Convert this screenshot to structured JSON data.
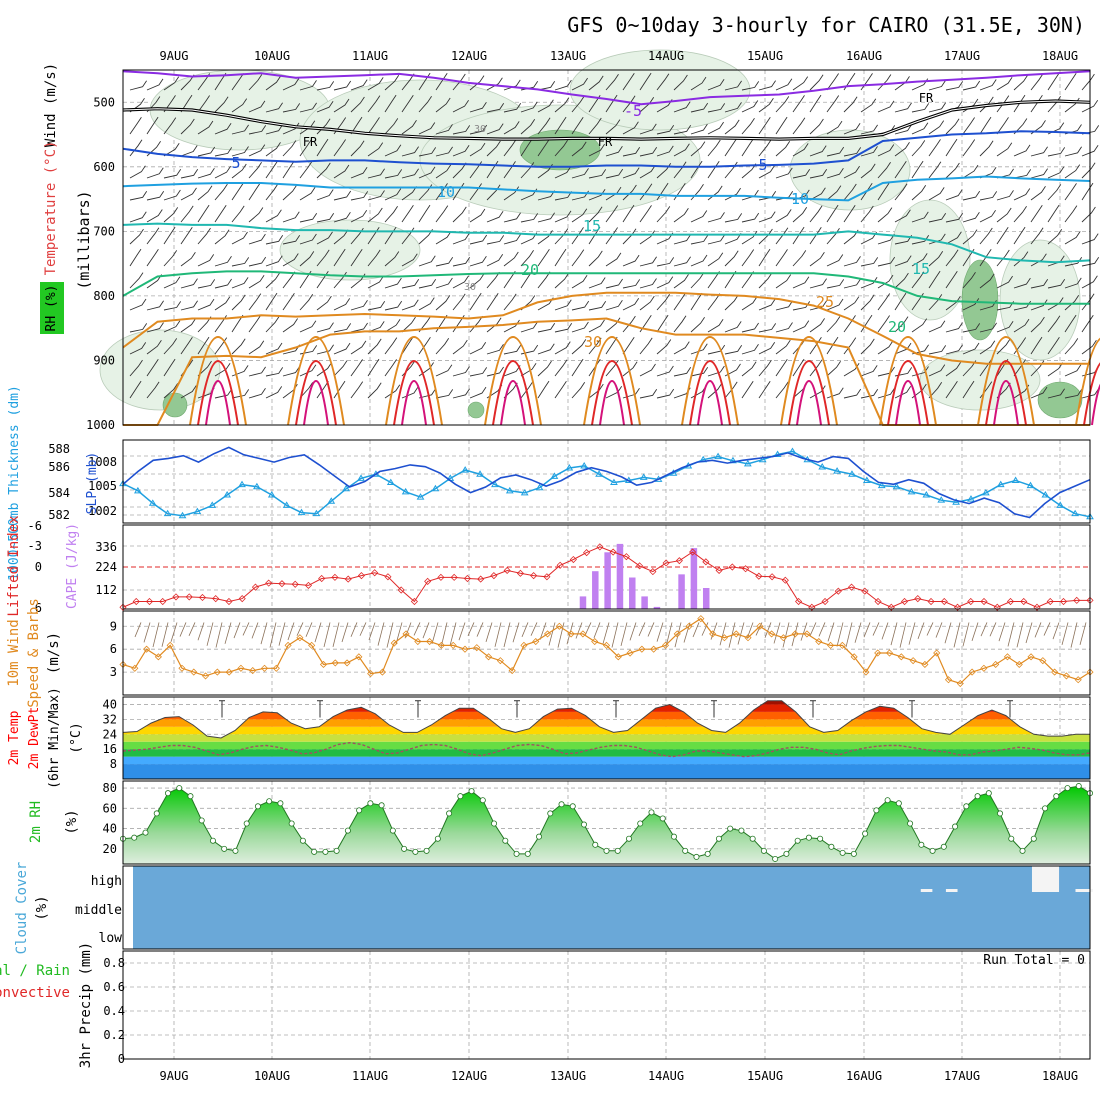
{
  "title": "GFS 0~10day 3-hourly for CAIRO (31.5E, 30N)",
  "dates": [
    "9AUG",
    "10AUG",
    "11AUG",
    "12AUG",
    "13AUG",
    "14AUG",
    "15AUG",
    "16AUG",
    "17AUG",
    "18AUG"
  ],
  "colors": {
    "purple": "#8a2be2",
    "black": "#000000",
    "blue": "#1e50d0",
    "lightblue": "#1fa0e0",
    "teal": "#20b8b0",
    "green": "#20b878",
    "orange": "#e08a20",
    "red": "#e02828",
    "cape": "#c080f0",
    "cloud": "#6aa8d8",
    "rh_green": "#22c822"
  },
  "chart_data": [
    {
      "panel": "upper-air",
      "type": "contour",
      "ylabel": "(millibars)",
      "legend_labels": [
        "Wind (m/s)",
        "Temperature (°C)",
        "RH (%)"
      ],
      "y_ticks": [
        "500",
        "600",
        "700",
        "800",
        "900",
        "1000"
      ],
      "ylim": [
        1000,
        450
      ],
      "freezing_label": "FR",
      "isotherm_labels": [
        "-5",
        "5",
        "5",
        "10",
        "10",
        "15",
        "15",
        "20",
        "20",
        "25",
        "30"
      ],
      "rh_labels": [
        "30",
        "30"
      ],
      "isotherms": [
        {
          "label": "-5",
          "color": "purple",
          "p": [
            452,
            455,
            460,
            458,
            455,
            462,
            460,
            458,
            456,
            462,
            470,
            475,
            480,
            488,
            495,
            503,
            498,
            492,
            490,
            488,
            482,
            475,
            472,
            468,
            465,
            462,
            458,
            455,
            452
          ]
        },
        {
          "label": "FR",
          "color": "black",
          "p": [
            512,
            510,
            512,
            520,
            530,
            538,
            542,
            548,
            552,
            555,
            556,
            557,
            557,
            556,
            556,
            557,
            556,
            555,
            556,
            557,
            556,
            556,
            550,
            530,
            512,
            505,
            500,
            498,
            500
          ]
        },
        {
          "label": "5",
          "color": "blue",
          "p": [
            572,
            580,
            585,
            588,
            590,
            592,
            590,
            590,
            593,
            595,
            596,
            598,
            600,
            600,
            598,
            598,
            600,
            600,
            598,
            597,
            595,
            590,
            560,
            555,
            550,
            548,
            545,
            546,
            548
          ]
        },
        {
          "label": "10",
          "color": "lightblue",
          "p": [
            630,
            628,
            626,
            625,
            625,
            628,
            632,
            632,
            632,
            632,
            632,
            635,
            638,
            640,
            642,
            642,
            645,
            645,
            645,
            648,
            650,
            652,
            625,
            620,
            618,
            615,
            618,
            620,
            622
          ]
        },
        {
          "label": "15",
          "color": "teal",
          "p": [
            690,
            688,
            690,
            690,
            695,
            698,
            698,
            700,
            700,
            700,
            702,
            702,
            705,
            705,
            705,
            705,
            705,
            705,
            705,
            705,
            705,
            700,
            705,
            710,
            720,
            740,
            745,
            748,
            745
          ]
        },
        {
          "label": "20",
          "color": "green",
          "p": [
            800,
            770,
            765,
            762,
            762,
            765,
            768,
            770,
            770,
            768,
            766,
            765,
            765,
            765,
            765,
            765,
            765,
            765,
            765,
            765,
            765,
            770,
            780,
            800,
            808,
            810,
            812,
            812,
            812
          ]
        },
        {
          "label": "25",
          "color": "orange",
          "p": [
            880,
            840,
            835,
            835,
            830,
            832,
            830,
            828,
            830,
            832,
            835,
            830,
            810,
            800,
            795,
            795,
            795,
            798,
            800,
            805,
            815,
            835,
            862,
            890,
            900,
            905,
            905,
            905,
            905
          ]
        },
        {
          "label": "30",
          "color": "orange",
          "p": [
            1000,
            1000,
            895,
            893,
            895,
            880,
            860,
            855,
            855,
            850,
            848,
            845,
            840,
            838,
            835,
            850,
            860,
            860,
            860,
            865,
            870,
            880,
            1000,
            1000,
            1000,
            1000,
            1000,
            1000,
            1000
          ]
        }
      ]
    },
    {
      "panel": "thickness-slp",
      "type": "line",
      "left_ylabel": "1000~500mb Thickness (dm)",
      "right_ylabel": "SLP (mb)",
      "left_ticks": [
        "588",
        "586",
        "584",
        "582"
      ],
      "right_ticks": [
        "1008",
        "1005",
        "1002"
      ],
      "series": [
        {
          "name": "Thickness",
          "color": "lightblue",
          "ylim": [
            581.5,
            589.5
          ],
          "values": [
            585.3,
            584.6,
            583.4,
            582.4,
            582.2,
            582.6,
            583.2,
            584.2,
            585.2,
            585.0,
            584.2,
            583.2,
            582.5,
            582.4,
            583.6,
            584.8,
            585.8,
            586.2,
            585.4,
            584.5,
            584.0,
            584.8,
            585.8,
            586.6,
            586.2,
            585.2,
            584.6,
            584.4,
            584.9,
            586.0,
            586.8,
            587.0,
            586.2,
            585.4,
            585.6,
            585.9,
            585.7,
            586.3,
            587.0,
            587.6,
            587.9,
            587.5,
            587.2,
            587.6,
            588.1,
            588.4,
            587.6,
            586.9,
            586.5,
            586.2,
            585.6,
            585.1,
            585.0,
            584.5,
            584.2,
            583.7,
            583.5,
            583.8,
            584.4,
            585.2,
            585.6,
            585.1,
            584.2,
            583.2,
            582.4,
            582.1
          ]
        },
        {
          "name": "SLP",
          "color": "blue",
          "ylim": [
            1001,
            1010
          ],
          "values": [
            1005.2,
            1006.6,
            1007.8,
            1008.0,
            1008.3,
            1007.6,
            1008.5,
            1009.2,
            1008.4,
            1008.0,
            1007.6,
            1008.1,
            1008.4,
            1007.3,
            1006.1,
            1004.9,
            1005.5,
            1006.6,
            1006.9,
            1007.3,
            1007.1,
            1006.4,
            1005.2,
            1004.3,
            1004.9,
            1005.9,
            1006.2,
            1005.7,
            1005.0,
            1005.6,
            1006.5,
            1007.0,
            1006.6,
            1006.0,
            1005.1,
            1005.4,
            1006.2,
            1007.0,
            1007.6,
            1007.8,
            1007.5,
            1007.8,
            1008.0,
            1008.2,
            1008.6,
            1008.0,
            1007.6,
            1008.2,
            1008.0,
            1006.6,
            1005.4,
            1005.2,
            1005.7,
            1005.3,
            1004.2,
            1003.5,
            1003.1,
            1003.7,
            1003.2,
            1002.0,
            1001.6,
            1003.1,
            1004.3,
            1005.0,
            1005.7
          ]
        }
      ]
    },
    {
      "panel": "lifted-index-cape",
      "type": "bar+line",
      "left_ylabel": "Lifted Index",
      "right_ylabel": "CAPE (J/kg)",
      "left_ticks": [
        "6",
        "0",
        "-3",
        "-6"
      ],
      "right_ticks": [
        "336",
        "224",
        "112"
      ],
      "lifted_index": [
        7,
        6,
        6,
        6,
        5.2,
        5.2,
        5.3,
        5.5,
        6,
        5.5,
        3.5,
        2.8,
        2.9,
        3.0,
        3.2,
        2,
        1.8,
        2.1,
        1.5,
        1.0,
        1.7,
        4,
        6,
        2.5,
        1.8,
        1.8,
        2.0,
        2.1,
        1.5,
        0.6,
        1.1,
        1.5,
        1.7,
        -0.3,
        -1.3,
        -2.5,
        -3.5,
        -2.6,
        -1.8,
        -0.2,
        0.8,
        -0.7,
        -1.1,
        -2.6,
        -0.9,
        0.6,
        0.0,
        0.3,
        1.6,
        1.7,
        2.3,
        6,
        7,
        6,
        4.2,
        3.5,
        4.2,
        6,
        7,
        6,
        5.5,
        6,
        6,
        7,
        6,
        6,
        7,
        6,
        6,
        7,
        6,
        6,
        5.8,
        5.8
      ],
      "cape": {
        "bars": [
          {
            "i": 37,
            "v": 60
          },
          {
            "i": 38,
            "v": 180
          },
          {
            "i": 39,
            "v": 270
          },
          {
            "i": 40,
            "v": 310
          },
          {
            "i": 41,
            "v": 150
          },
          {
            "i": 42,
            "v": 60
          },
          {
            "i": 43,
            "v": 10
          },
          {
            "i": 45,
            "v": 165
          },
          {
            "i": 46,
            "v": 290
          },
          {
            "i": 47,
            "v": 100
          }
        ],
        "ylim": [
          0,
          400
        ]
      }
    },
    {
      "panel": "wind10m",
      "type": "line",
      "ylabel": "10m Wind Speed & Barbs (m/s)",
      "y_ticks": [
        "9",
        "6",
        "3"
      ],
      "ylim": [
        0,
        11
      ],
      "values": [
        4,
        3.5,
        6,
        5,
        6.5,
        3.5,
        3,
        2.5,
        3,
        3,
        3.5,
        3.2,
        3.5,
        3.5,
        6.5,
        7.5,
        6.5,
        4,
        4.2,
        4.2,
        5,
        2.8,
        3,
        6.8,
        8,
        7,
        7,
        6.5,
        6.5,
        6,
        6.2,
        5,
        4.5,
        3.2,
        6.5,
        7,
        8,
        9,
        8,
        8,
        7,
        6.5,
        5,
        5.5,
        6,
        6,
        6.5,
        8,
        9,
        10,
        8,
        7.5,
        8,
        7.5,
        9,
        8,
        7.5,
        8,
        8,
        7,
        6.5,
        6.5,
        5,
        3,
        5.5,
        5.5,
        5,
        4.5,
        4,
        5.5,
        2,
        1.5,
        3,
        3.5,
        4,
        5,
        4,
        5,
        4.5,
        3,
        2.5,
        2,
        3
      ]
    },
    {
      "panel": "temperature",
      "type": "area",
      "ylabel": "2m Temp, 2m DewPt (6hr Min/Max) (°C)",
      "y_ticks": [
        "40",
        "32",
        "24",
        "16",
        "8"
      ],
      "ylim": [
        0,
        44
      ],
      "temp": [
        25,
        25.5,
        30,
        33,
        33.5,
        29,
        23,
        22,
        26,
        33,
        36,
        35.5,
        30,
        27,
        28,
        33.5,
        37,
        38.5,
        35,
        29,
        25,
        25,
        29,
        34,
        38,
        38,
        33,
        27,
        25,
        27,
        33.5,
        37.5,
        38,
        34,
        28,
        25,
        26,
        32,
        38,
        40,
        36,
        30,
        26,
        25,
        30,
        37,
        42,
        42,
        36,
        28,
        25,
        26,
        31.5,
        36,
        39,
        38,
        33,
        27,
        25,
        24,
        29,
        34,
        37,
        34,
        28,
        24,
        23,
        23,
        24,
        24
      ],
      "dewpt": [
        15,
        15.5,
        16,
        17,
        18,
        18,
        17,
        15,
        13,
        14,
        16,
        17.5,
        18,
        17,
        15.5,
        13.5,
        14,
        16,
        18.5,
        19.5,
        18.5,
        16,
        13.5,
        14,
        16,
        18,
        18.5,
        18,
        16,
        13.5,
        12.5,
        14,
        16,
        18,
        18.5,
        18,
        16,
        13.5,
        14,
        15.5,
        17,
        18,
        18,
        17,
        15,
        13,
        12,
        13,
        15,
        15,
        14,
        13,
        12,
        12.5,
        14,
        16,
        17,
        17,
        16,
        14,
        13,
        15,
        16.5,
        17.5,
        18,
        18,
        17,
        16,
        15,
        14.5,
        13,
        13,
        14.5,
        15,
        16,
        17,
        16.5,
        15.5,
        14,
        13,
        13,
        14
      ]
    },
    {
      "panel": "rh",
      "type": "area",
      "ylabel": "2m RH (%)",
      "y_ticks": [
        "80",
        "60",
        "40",
        "20"
      ],
      "ylim": [
        5,
        87
      ],
      "values": [
        30,
        31,
        36,
        55,
        75,
        80,
        72,
        48,
        28,
        20,
        18,
        45,
        62,
        67,
        65,
        45,
        28,
        17,
        17,
        18,
        38,
        58,
        65,
        63,
        38,
        20,
        17,
        18,
        30,
        55,
        72,
        77,
        68,
        45,
        28,
        15,
        15,
        32,
        55,
        64,
        62,
        44,
        24,
        18,
        18,
        30,
        45,
        56,
        50,
        32,
        18,
        12,
        15,
        30,
        40,
        38,
        30,
        18,
        10,
        15,
        28,
        31,
        30,
        22,
        16,
        15,
        35,
        58,
        68,
        65,
        45,
        24,
        18,
        22,
        42,
        62,
        72,
        75,
        55,
        30,
        18,
        30,
        60,
        72,
        80,
        82,
        75
      ]
    },
    {
      "panel": "cloud-cover",
      "type": "heatmap",
      "ylabel": "Cloud Cover (%)",
      "levels": [
        "high",
        "middle",
        "low"
      ],
      "clear_high_gaps": [
        {
          "x": 0.825,
          "w": 0.012
        },
        {
          "x": 0.851,
          "w": 0.012
        },
        {
          "x": 0.94,
          "w": 0.028
        },
        {
          "x": 0.985,
          "w": 0.018
        }
      ]
    },
    {
      "panel": "precip",
      "type": "bar",
      "ylabel": "3hr Precip (mm)",
      "legend_labels": [
        "Total / Rain",
        "Convective"
      ],
      "run_total_text": "Run Total = 0",
      "y_ticks": [
        "0.8",
        "0.6",
        "0.4",
        "0.2",
        "0"
      ],
      "ylim": [
        0,
        0.9
      ],
      "values": []
    }
  ]
}
